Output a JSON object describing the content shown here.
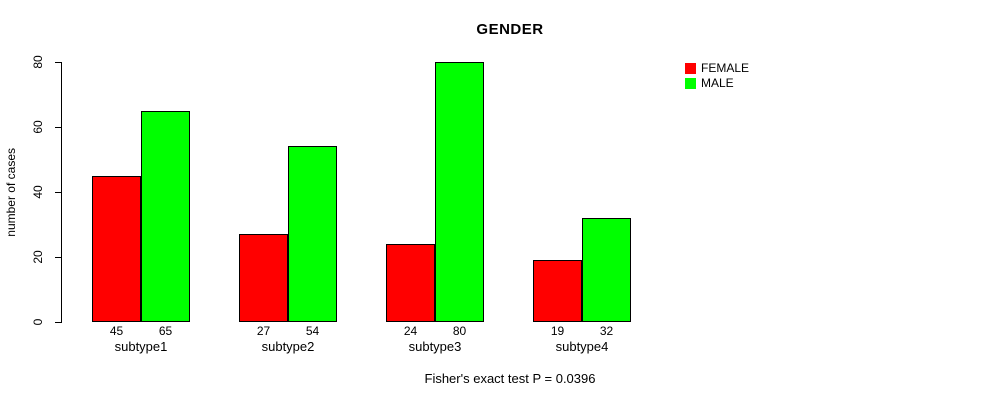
{
  "chart_data": {
    "type": "bar",
    "title": "GENDER",
    "ylabel": "number of cases",
    "xlabel": "",
    "categories": [
      "subtype1",
      "subtype2",
      "subtype3",
      "subtype4"
    ],
    "series": [
      {
        "name": "FEMALE",
        "color": "#ff0000",
        "values": [
          45,
          27,
          24,
          19
        ]
      },
      {
        "name": "MALE",
        "color": "#00ff00",
        "values": [
          65,
          54,
          80,
          32
        ]
      }
    ],
    "ylim": [
      0,
      80
    ],
    "yticks": [
      0,
      20,
      40,
      60,
      80
    ],
    "grid": false,
    "legend_position": "top-right-inside",
    "bar_border_color": "#000000",
    "value_labels_shown": true,
    "note": "Fisher's exact test P = 0.0396"
  }
}
